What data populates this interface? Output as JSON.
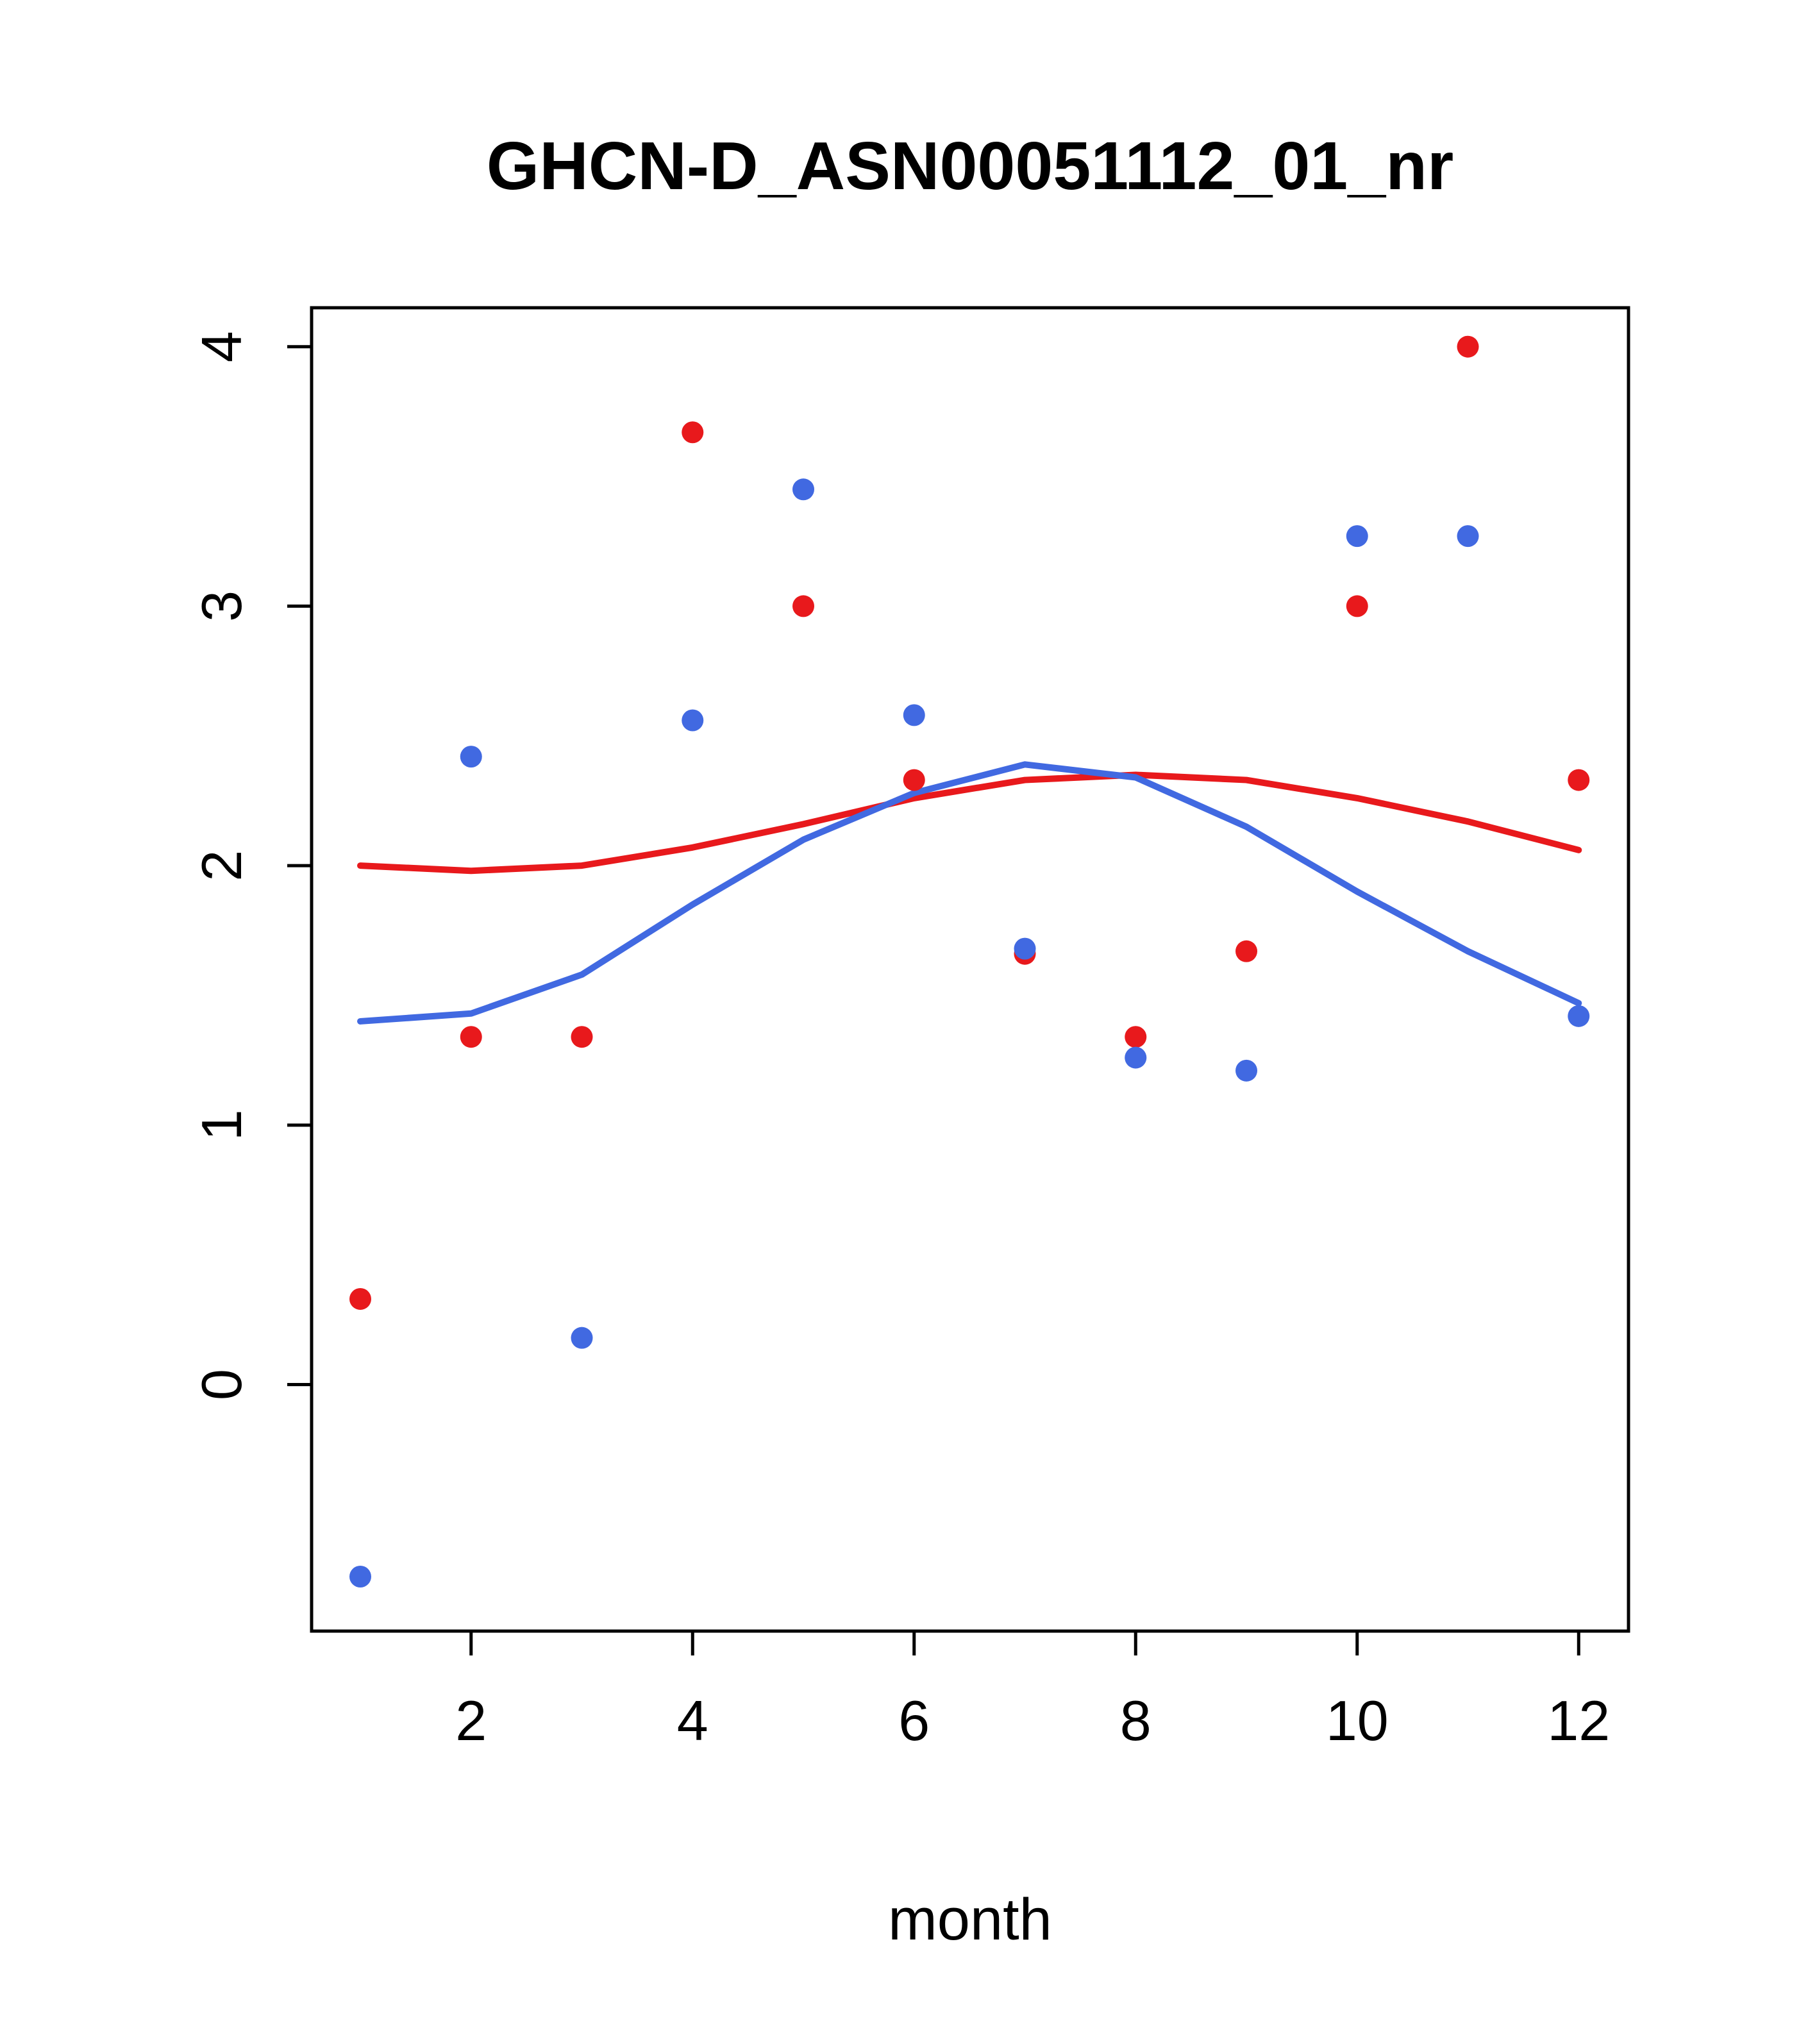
{
  "chart_data": {
    "type": "scatter",
    "title": "GHCN-D_ASN00051112_01_nr",
    "xlabel": "month",
    "ylabel": "",
    "x_ticks": [
      2,
      4,
      6,
      8,
      10,
      12
    ],
    "y_ticks": [
      0,
      1,
      2,
      3,
      4
    ],
    "xlim": [
      0.56,
      12.45
    ],
    "ylim": [
      -0.95,
      4.15
    ],
    "grid": false,
    "legend": "none",
    "colors": {
      "red": "#e8191c",
      "blue": "#4169e1",
      "axis": "#000000"
    },
    "x": [
      1,
      2,
      3,
      4,
      5,
      6,
      7,
      8,
      9,
      10,
      11,
      12
    ],
    "series": [
      {
        "name": "red-trend-line",
        "type": "line",
        "color": "#e8191c",
        "values": [
          2.0,
          1.98,
          2.0,
          2.07,
          2.16,
          2.26,
          2.33,
          2.35,
          2.33,
          2.26,
          2.17,
          2.06
        ]
      },
      {
        "name": "blue-trend-line",
        "type": "line",
        "color": "#4169e1",
        "values": [
          1.4,
          1.43,
          1.58,
          1.85,
          2.1,
          2.28,
          2.39,
          2.34,
          2.15,
          1.9,
          1.67,
          1.47
        ]
      },
      {
        "name": "red-points",
        "type": "points",
        "color": "#e8191c",
        "values": [
          0.33,
          1.34,
          1.34,
          3.67,
          3.0,
          2.33,
          1.66,
          1.34,
          1.67,
          3.0,
          4.0,
          2.33
        ]
      },
      {
        "name": "blue-points",
        "type": "points",
        "color": "#4169e1",
        "values": [
          -0.74,
          2.42,
          0.18,
          2.56,
          3.45,
          2.58,
          1.68,
          1.26,
          1.21,
          3.27,
          3.27,
          1.42
        ]
      }
    ]
  }
}
